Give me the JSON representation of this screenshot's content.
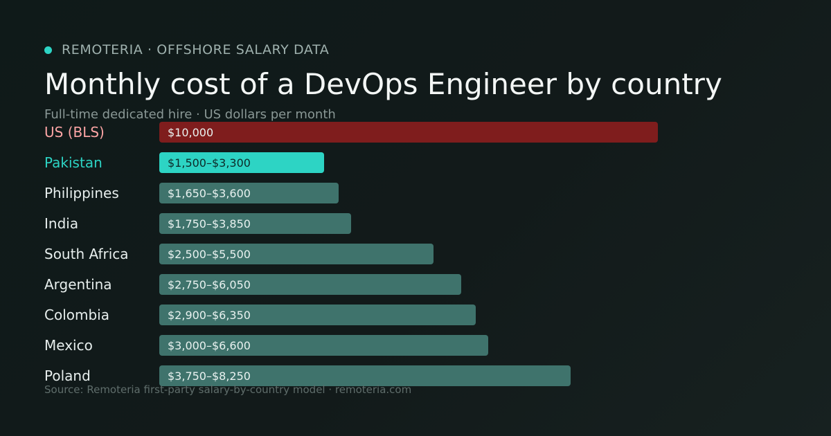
{
  "header": {
    "brand": "REMOTERIA · OFFSHORE SALARY DATA",
    "title": "Monthly cost of a DevOps Engineer by country",
    "subtitle": "Full-time dedicated hire · US dollars per month"
  },
  "footer": {
    "source": "Source: Remoteria first-party salary-by-country model · remoteria.com"
  },
  "colors": {
    "accent": "#2dd4c4",
    "us_bar": "#7f1d1d",
    "us_label": "#fca5a5",
    "highlight_bar": "#2dd4c4",
    "highlight_label": "#2dd4c4",
    "default_bar": "#3f736c",
    "default_label": "#e7eeed"
  },
  "chart_data": {
    "type": "bar",
    "orientation": "horizontal",
    "grid": false,
    "legend": "none",
    "xlim": [
      0,
      10000
    ],
    "categories": [
      "US (BLS)",
      "Pakistan",
      "Philippines",
      "India",
      "South Africa",
      "Argentina",
      "Colombia",
      "Mexico",
      "Poland"
    ],
    "low": [
      null,
      1500,
      1650,
      1750,
      2500,
      2750,
      2900,
      3000,
      3750
    ],
    "high": [
      10000,
      3300,
      3600,
      3850,
      5500,
      6050,
      6350,
      6600,
      8250
    ],
    "data_labels": [
      "$10,000",
      "$1,500–$3,300",
      "$1,650–$3,600",
      "$1,750–$3,850",
      "$2,500–$5,500",
      "$2,750–$6,050",
      "$2,900–$6,350",
      "$3,000–$6,600",
      "$3,750–$8,250"
    ],
    "styles": [
      "us",
      "highlight",
      "default",
      "default",
      "default",
      "default",
      "default",
      "default",
      "default"
    ]
  }
}
